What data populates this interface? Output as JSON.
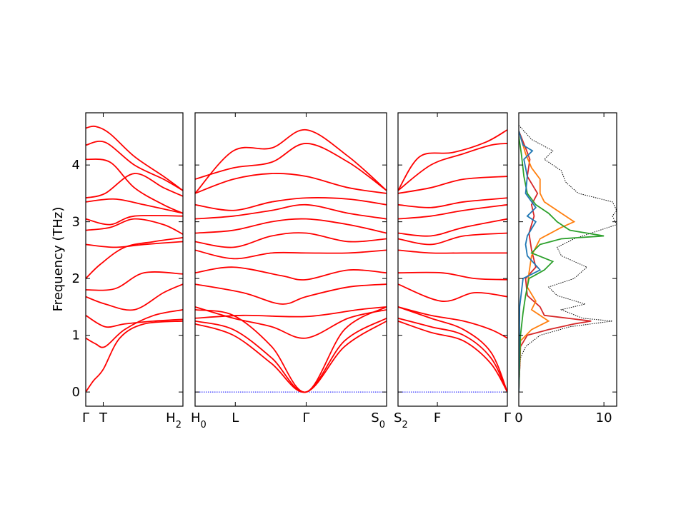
{
  "chart_data": {
    "type": "line",
    "ylabel": "Frequency (THz)",
    "ylim": [
      -0.25,
      4.92
    ],
    "yticks": [
      "0",
      "1",
      "2",
      "3",
      "4"
    ],
    "ytick_values": [
      0,
      1,
      2,
      3,
      4
    ],
    "band_color": "#ff0000",
    "zero_line_color": "#0000ff",
    "panels": [
      {
        "name": "segment-gamma-T-H2",
        "xticks": [
          {
            "label": "Γ",
            "pos": 0.0
          },
          {
            "label": "T",
            "pos": 0.18
          },
          {
            "label": "H",
            "pos": 1.0,
            "sub": "2"
          }
        ],
        "bands": [
          {
            "x": [
              0,
              0.08,
              0.18,
              0.35,
              0.6,
              1.0
            ],
            "y": [
              0,
              0.2,
              0.4,
              0.95,
              1.2,
              1.25
            ]
          },
          {
            "x": [
              0,
              0.1,
              0.2,
              0.4,
              0.7,
              1.0
            ],
            "y": [
              0.95,
              0.85,
              0.8,
              1.1,
              1.35,
              1.45
            ]
          },
          {
            "x": [
              0,
              0.2,
              0.4,
              0.7,
              1.0
            ],
            "y": [
              1.35,
              1.15,
              1.2,
              1.25,
              1.28
            ]
          },
          {
            "x": [
              0,
              0.2,
              0.5,
              0.8,
              1.0
            ],
            "y": [
              1.68,
              1.55,
              1.45,
              1.75,
              1.9
            ]
          },
          {
            "x": [
              0,
              0.15,
              0.4,
              0.7,
              1.0
            ],
            "y": [
              2.0,
              2.25,
              2.55,
              2.65,
              2.72
            ]
          },
          {
            "x": [
              0,
              0.3,
              0.6,
              1.0
            ],
            "y": [
              1.8,
              1.82,
              2.1,
              2.08
            ]
          },
          {
            "x": [
              0,
              0.3,
              0.6,
              1.0
            ],
            "y": [
              2.6,
              2.55,
              2.6,
              2.65
            ]
          },
          {
            "x": [
              0,
              0.25,
              0.5,
              0.8,
              1.0
            ],
            "y": [
              2.85,
              2.9,
              3.05,
              2.95,
              2.78
            ]
          },
          {
            "x": [
              0,
              0.25,
              0.5,
              1.0
            ],
            "y": [
              3.05,
              2.95,
              3.1,
              3.1
            ]
          },
          {
            "x": [
              0,
              0.3,
              0.6,
              1.0
            ],
            "y": [
              3.35,
              3.4,
              3.3,
              3.15
            ]
          },
          {
            "x": [
              0,
              0.2,
              0.5,
              0.8,
              1.0
            ],
            "y": [
              3.42,
              3.5,
              3.85,
              3.6,
              3.45
            ]
          },
          {
            "x": [
              0,
              0.25,
              0.5,
              0.8,
              1.0
            ],
            "y": [
              4.1,
              4.05,
              3.6,
              3.3,
              3.15
            ]
          },
          {
            "x": [
              0,
              0.2,
              0.5,
              0.8,
              1.0
            ],
            "y": [
              4.35,
              4.4,
              4.0,
              3.75,
              3.55
            ]
          },
          {
            "x": [
              0,
              0.1,
              0.25,
              0.5,
              0.8,
              1.0
            ],
            "y": [
              4.65,
              4.68,
              4.55,
              4.15,
              3.8,
              3.55
            ]
          }
        ]
      },
      {
        "name": "segment-H0-L-gamma-S0",
        "xticks": [
          {
            "label": "H",
            "pos": 0.0,
            "sub": "0"
          },
          {
            "label": "L",
            "pos": 0.21
          },
          {
            "label": "Γ",
            "pos": 0.58
          },
          {
            "label": "S",
            "pos": 1.0,
            "sub": "0"
          }
        ],
        "bands": [
          {
            "x": [
              0,
              0.21,
              0.4,
              0.58,
              0.75,
              1.0
            ],
            "y": [
              0,
              0,
              0,
              0,
              0,
              0
            ],
            "zero": true
          },
          {
            "x": [
              0,
              0.2,
              0.4,
              0.58,
              0.78,
              1.0
            ],
            "y": [
              1.2,
              1.0,
              0.5,
              0.0,
              0.8,
              1.25
            ]
          },
          {
            "x": [
              0,
              0.2,
              0.4,
              0.58,
              0.78,
              1.0
            ],
            "y": [
              1.25,
              1.1,
              0.6,
              0.0,
              0.9,
              1.3
            ]
          },
          {
            "x": [
              0,
              0.2,
              0.4,
              0.58,
              0.78,
              1.0
            ],
            "y": [
              1.45,
              1.35,
              0.8,
              0.0,
              1.1,
              1.5
            ]
          },
          {
            "x": [
              0,
              0.2,
              0.4,
              0.58,
              0.8,
              1.0
            ],
            "y": [
              1.5,
              1.3,
              1.15,
              0.95,
              1.3,
              1.45
            ]
          },
          {
            "x": [
              0,
              0.25,
              0.58,
              0.85,
              1.0
            ],
            "y": [
              1.3,
              1.35,
              1.33,
              1.45,
              1.5
            ]
          },
          {
            "x": [
              0,
              0.25,
              0.45,
              0.58,
              0.8,
              1.0
            ],
            "y": [
              1.9,
              1.75,
              1.55,
              1.68,
              1.85,
              1.9
            ]
          },
          {
            "x": [
              0,
              0.2,
              0.45,
              0.58,
              0.8,
              1.0
            ],
            "y": [
              2.1,
              2.2,
              2.05,
              1.98,
              2.15,
              2.1
            ]
          },
          {
            "x": [
              0,
              0.2,
              0.4,
              0.58,
              0.8,
              1.0
            ],
            "y": [
              2.5,
              2.35,
              2.45,
              2.45,
              2.45,
              2.5
            ]
          },
          {
            "x": [
              0,
              0.2,
              0.4,
              0.58,
              0.8,
              1.0
            ],
            "y": [
              2.65,
              2.55,
              2.75,
              2.8,
              2.65,
              2.7
            ]
          },
          {
            "x": [
              0,
              0.2,
              0.4,
              0.58,
              0.8,
              1.0
            ],
            "y": [
              2.8,
              2.85,
              3.0,
              3.05,
              2.95,
              2.8
            ]
          },
          {
            "x": [
              0,
              0.2,
              0.4,
              0.58,
              0.8,
              1.0
            ],
            "y": [
              3.05,
              3.1,
              3.2,
              3.3,
              3.15,
              3.05
            ]
          },
          {
            "x": [
              0,
              0.2,
              0.4,
              0.58,
              0.8,
              1.0
            ],
            "y": [
              3.3,
              3.2,
              3.35,
              3.42,
              3.4,
              3.3
            ]
          },
          {
            "x": [
              0,
              0.2,
              0.4,
              0.58,
              0.8,
              1.0
            ],
            "y": [
              3.5,
              3.75,
              3.85,
              3.8,
              3.6,
              3.5
            ]
          },
          {
            "x": [
              0,
              0.2,
              0.4,
              0.58,
              0.8,
              1.0
            ],
            "y": [
              3.75,
              3.95,
              4.05,
              4.38,
              4.05,
              3.55
            ]
          },
          {
            "x": [
              0,
              0.2,
              0.4,
              0.58,
              0.8,
              1.0
            ],
            "y": [
              3.5,
              4.25,
              4.3,
              4.62,
              4.15,
              3.55
            ]
          }
        ]
      },
      {
        "name": "segment-S2-F-gamma",
        "xticks": [
          {
            "label": "S",
            "pos": 0.0,
            "sub": "2"
          },
          {
            "label": "F",
            "pos": 0.36
          },
          {
            "label": "Γ",
            "pos": 1.0
          }
        ],
        "bands": [
          {
            "x": [
              0,
              0.5,
              1.0
            ],
            "y": [
              0,
              0,
              0
            ],
            "zero": true
          },
          {
            "x": [
              0,
              0.3,
              0.6,
              0.85,
              1.0
            ],
            "y": [
              1.25,
              1.05,
              0.9,
              0.5,
              0.0
            ]
          },
          {
            "x": [
              0,
              0.3,
              0.6,
              0.85,
              1.0
            ],
            "y": [
              1.3,
              1.15,
              1.0,
              0.6,
              0.0
            ]
          },
          {
            "x": [
              0,
              0.3,
              0.6,
              0.85,
              1.0
            ],
            "y": [
              1.5,
              1.3,
              1.1,
              0.7,
              0.0
            ]
          },
          {
            "x": [
              0,
              0.3,
              0.6,
              0.85,
              1.0
            ],
            "y": [
              1.5,
              1.35,
              1.25,
              1.1,
              0.95
            ]
          },
          {
            "x": [
              0,
              0.4,
              0.7,
              1.0
            ],
            "y": [
              1.9,
              1.6,
              1.75,
              1.68
            ]
          },
          {
            "x": [
              0,
              0.4,
              0.7,
              1.0
            ],
            "y": [
              2.1,
              2.1,
              2.0,
              1.98
            ]
          },
          {
            "x": [
              0,
              0.3,
              0.6,
              1.0
            ],
            "y": [
              2.5,
              2.45,
              2.45,
              2.45
            ]
          },
          {
            "x": [
              0,
              0.3,
              0.6,
              1.0
            ],
            "y": [
              2.7,
              2.6,
              2.75,
              2.8
            ]
          },
          {
            "x": [
              0,
              0.3,
              0.6,
              1.0
            ],
            "y": [
              2.8,
              2.75,
              2.9,
              3.05
            ]
          },
          {
            "x": [
              0,
              0.3,
              0.6,
              1.0
            ],
            "y": [
              3.05,
              3.1,
              3.2,
              3.3
            ]
          },
          {
            "x": [
              0,
              0.3,
              0.6,
              1.0
            ],
            "y": [
              3.3,
              3.25,
              3.35,
              3.42
            ]
          },
          {
            "x": [
              0,
              0.3,
              0.6,
              1.0
            ],
            "y": [
              3.5,
              3.6,
              3.75,
              3.8
            ]
          },
          {
            "x": [
              0,
              0.3,
              0.6,
              0.85,
              1.0
            ],
            "y": [
              3.55,
              4.0,
              4.2,
              4.35,
              4.38
            ]
          },
          {
            "x": [
              0,
              0.2,
              0.5,
              0.8,
              1.0
            ],
            "y": [
              3.55,
              4.15,
              4.22,
              4.4,
              4.62
            ]
          }
        ]
      }
    ],
    "dos": {
      "xlim": [
        0,
        11.5
      ],
      "xticks": [
        {
          "label": "0",
          "value": 0
        },
        {
          "label": "10",
          "value": 10
        }
      ],
      "series": [
        {
          "color": "#000000",
          "dotted": true,
          "f": [
            0,
            0.6,
            0.8,
            1.0,
            1.15,
            1.25,
            1.3,
            1.45,
            1.55,
            1.7,
            1.85,
            2.0,
            2.2,
            2.4,
            2.55,
            2.7,
            2.8,
            2.95,
            3.1,
            3.2,
            3.35,
            3.5,
            3.7,
            3.9,
            4.1,
            4.25,
            4.45,
            4.7
          ],
          "v": [
            0,
            0.2,
            0.8,
            2.5,
            6.0,
            11.0,
            7.5,
            5.0,
            7.8,
            4.5,
            3.5,
            6.5,
            8.0,
            5.0,
            4.5,
            6.5,
            8.5,
            11.5,
            11.0,
            11.5,
            11.0,
            7.0,
            5.5,
            5.0,
            3.0,
            4.0,
            1.5,
            0
          ]
        },
        {
          "color": "#d62728",
          "f": [
            0,
            0.8,
            1.0,
            1.1,
            1.2,
            1.25,
            1.35,
            1.5,
            1.7,
            2.0,
            2.2,
            2.5,
            2.8,
            3.1,
            3.3,
            3.5,
            3.8,
            4.1,
            4.3,
            4.6
          ],
          "v": [
            0,
            0.2,
            1.0,
            3.5,
            6.5,
            8.5,
            3.0,
            2.5,
            1.0,
            0.8,
            2.0,
            1.5,
            1.2,
            1.8,
            1.5,
            2.2,
            1.0,
            1.3,
            0.8,
            0
          ]
        },
        {
          "color": "#ff7f0e",
          "f": [
            0,
            0.9,
            1.1,
            1.25,
            1.45,
            1.6,
            1.85,
            2.1,
            2.4,
            2.7,
            2.9,
            3.0,
            3.1,
            3.2,
            3.35,
            3.5,
            3.75,
            3.95,
            4.2,
            4.6
          ],
          "v": [
            0,
            0.2,
            1.5,
            3.5,
            1.5,
            2.0,
            1.0,
            1.2,
            1.5,
            2.5,
            5.0,
            6.5,
            5.5,
            4.5,
            3.0,
            2.5,
            2.5,
            1.5,
            0.8,
            0
          ]
        },
        {
          "color": "#2ca02c",
          "f": [
            0,
            1.0,
            1.4,
            1.7,
            2.0,
            2.15,
            2.3,
            2.45,
            2.6,
            2.7,
            2.75,
            2.85,
            3.0,
            3.15,
            3.3,
            3.5,
            3.8,
            4.2,
            4.5
          ],
          "v": [
            0,
            0.2,
            0.5,
            0.8,
            1.2,
            3.0,
            4.0,
            1.5,
            2.5,
            5.0,
            10.0,
            6.0,
            4.5,
            3.5,
            2.0,
            1.0,
            0.6,
            0.3,
            0
          ]
        },
        {
          "color": "#1f77b4",
          "f": [
            0,
            1.5,
            2.0,
            2.15,
            2.4,
            2.6,
            2.75,
            3.0,
            3.1,
            3.25,
            3.5,
            3.8,
            4.1,
            4.25,
            4.35,
            4.6
          ],
          "v": [
            0,
            0.1,
            0.5,
            2.5,
            1.0,
            0.8,
            1.0,
            2.0,
            1.0,
            2.0,
            0.8,
            1.0,
            0.6,
            1.6,
            0.5,
            0
          ]
        }
      ]
    }
  }
}
